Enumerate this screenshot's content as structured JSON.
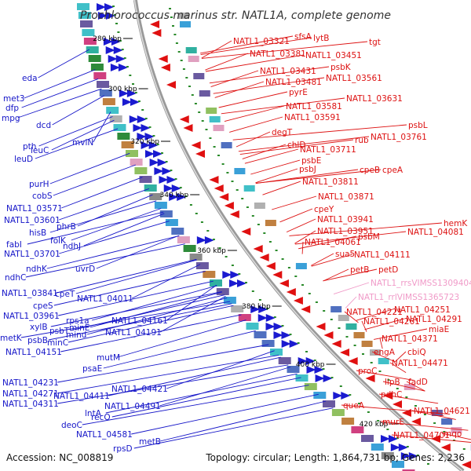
{
  "title": "Prochlorococcus marinus str. NATL1A, complete genome",
  "accession": "Accession: NC_008819",
  "topology": "Topology: circular; Length: 1,864,731 bp; Genes: 2,236",
  "colors": {
    "left_genes": "#1515c8",
    "right_genes": "#dd1111",
    "rna_genes": "#f09ac8",
    "backbone": "#999999",
    "ticks": "#2a8a2a"
  },
  "kbp_labels": [
    "280 kbp",
    "300 kbp",
    "320 kbp",
    "340 kbp",
    "360 kbp",
    "380 kbp",
    "400 kbp",
    "420 kbp"
  ],
  "left_labels": [
    {
      "text": "eda"
    },
    {
      "text": "met3"
    },
    {
      "text": "dfp"
    },
    {
      "text": "mpg"
    },
    {
      "text": "dcd"
    },
    {
      "text": "pth"
    },
    {
      "text": "leuC"
    },
    {
      "text": "leuD"
    },
    {
      "text": "mviN"
    },
    {
      "text": "purH"
    },
    {
      "text": "cobS"
    },
    {
      "text": "NATL1_03571"
    },
    {
      "text": "NATL1_03601"
    },
    {
      "text": "phrB"
    },
    {
      "text": "hisB"
    },
    {
      "text": "folK"
    },
    {
      "text": "fabI"
    },
    {
      "text": "ndhJ"
    },
    {
      "text": "NATL1_03701"
    },
    {
      "text": "ndhK"
    },
    {
      "text": "uvrD"
    },
    {
      "text": "ndhC"
    },
    {
      "text": "NATL1_03841"
    },
    {
      "text": "cpeT"
    },
    {
      "text": "NATL1_04011"
    },
    {
      "text": "cpeS"
    },
    {
      "text": "NATL1_03961"
    },
    {
      "text": "rps1a"
    },
    {
      "text": "xylB"
    },
    {
      "text": "NATL1_04161"
    },
    {
      "text": "minE"
    },
    {
      "text": "psbT"
    },
    {
      "text": "NATL1_04191"
    },
    {
      "text": "metK"
    },
    {
      "text": "psbB"
    },
    {
      "text": "mind"
    },
    {
      "text": "minC"
    },
    {
      "text": "NATL1_04151"
    },
    {
      "text": "mutM"
    },
    {
      "text": "psaE"
    },
    {
      "text": "NATL1_04231"
    },
    {
      "text": "NATL1_04421"
    },
    {
      "text": "NATL1_04271"
    },
    {
      "text": "NATL1_04411"
    },
    {
      "text": "NATL1_04311"
    },
    {
      "text": "NATL1_04491"
    },
    {
      "text": "lntA"
    },
    {
      "text": "recO"
    },
    {
      "text": "deoC"
    },
    {
      "text": "NATL1_04581"
    },
    {
      "text": "metB"
    },
    {
      "text": "rpsD"
    }
  ],
  "right_labels": [
    {
      "text": "NATL1_03321",
      "rna": false
    },
    {
      "text": "sfsA",
      "rna": false
    },
    {
      "text": "lytB",
      "rna": false
    },
    {
      "text": "tgt",
      "rna": false
    },
    {
      "text": "NATL1_03381",
      "rna": false
    },
    {
      "text": "NATL1_03451",
      "rna": false
    },
    {
      "text": "psbK",
      "rna": false
    },
    {
      "text": "NATL1_03431",
      "rna": false
    },
    {
      "text": "NATL1_03481",
      "rna": false
    },
    {
      "text": "NATL1_03561",
      "rna": false
    },
    {
      "text": "pyrE",
      "rna": false
    },
    {
      "text": "NATL1_03631",
      "rna": false
    },
    {
      "text": "NATL1_03581",
      "rna": false
    },
    {
      "text": "NATL1_03591",
      "rna": false
    },
    {
      "text": "psbL",
      "rna": false
    },
    {
      "text": "degT",
      "rna": false
    },
    {
      "text": "NATL1_03761",
      "rna": false
    },
    {
      "text": "rub",
      "rna": false
    },
    {
      "text": "chlD",
      "rna": false
    },
    {
      "text": "NATL1_03711",
      "rna": false
    },
    {
      "text": "psbE",
      "rna": false
    },
    {
      "text": "psbJ",
      "rna": false
    },
    {
      "text": "cpeB",
      "rna": false
    },
    {
      "text": "cpeA",
      "rna": false
    },
    {
      "text": "NATL1_03811",
      "rna": false
    },
    {
      "text": "NATL1_03871",
      "rna": false
    },
    {
      "text": "cpeY",
      "rna": false
    },
    {
      "text": "NATL1_03941",
      "rna": false
    },
    {
      "text": "hemK",
      "rna": false
    },
    {
      "text": "NATL1_03951",
      "rna": false
    },
    {
      "text": "NATL1_04081",
      "rna": false
    },
    {
      "text": "psbM",
      "rna": false
    },
    {
      "text": "NATL1_04061",
      "rna": false
    },
    {
      "text": "sua5",
      "rna": false
    },
    {
      "text": "NATL1_04111",
      "rna": false
    },
    {
      "text": "petB",
      "rna": false
    },
    {
      "text": "petD",
      "rna": false
    },
    {
      "text": "NATL1_rrsVIMSS1309404",
      "rna": true
    },
    {
      "text": "NATL1_rrlVIMSS1365723",
      "rna": true
    },
    {
      "text": "NATL1_04251",
      "rna": false
    },
    {
      "text": "NATL1_04221",
      "rna": false
    },
    {
      "text": "NATL1_04291",
      "rna": false
    },
    {
      "text": "NATL1_04261",
      "rna": false
    },
    {
      "text": "miaE",
      "rna": false
    },
    {
      "text": "NATL1_04371",
      "rna": false
    },
    {
      "text": "engA",
      "rna": false
    },
    {
      "text": "cbiQ",
      "rna": false
    },
    {
      "text": "NATL1_04471",
      "rna": false
    },
    {
      "text": "proC",
      "rna": false
    },
    {
      "text": "lipB",
      "rna": false
    },
    {
      "text": "fadD",
      "rna": false
    },
    {
      "text": "pdhC",
      "rna": false
    },
    {
      "text": "queA",
      "rna": false
    },
    {
      "text": "NATL1_04621",
      "rna": false
    },
    {
      "text": "murE",
      "rna": false
    },
    {
      "text": "NATL1_04701",
      "rna": false
    },
    {
      "text": "mqo",
      "rna": false
    }
  ]
}
